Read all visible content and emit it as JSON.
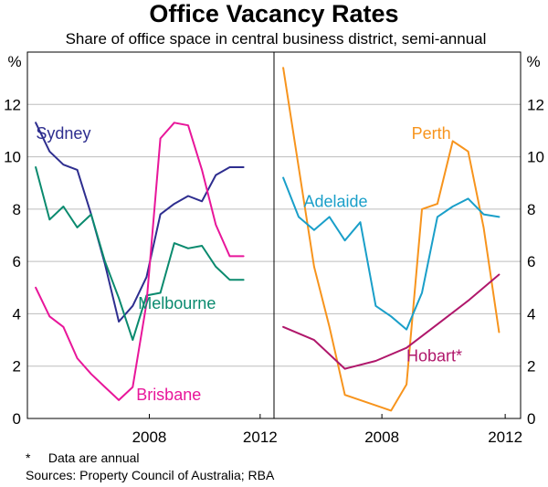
{
  "chart_data": {
    "type": "line",
    "title": "Office Vacancy Rates",
    "subtitle": "Share of office space in central business district, semi-annual",
    "unit_left": "%",
    "unit_right": "%",
    "ylim": [
      0,
      14
    ],
    "yticks": [
      0,
      2,
      4,
      6,
      8,
      10,
      12
    ],
    "grid": true,
    "colors": {
      "Sydney": "#2e2e8f",
      "Melbourne": "#0a8a6e",
      "Brisbane": "#e8169a",
      "Perth": "#f7941d",
      "Adelaide": "#1a9fc9",
      "Hobart*": "#b0176b"
    },
    "panels": [
      {
        "xlim": [
          2003.6,
          2012.5
        ],
        "xticks": [
          2008,
          2012
        ],
        "series": [
          {
            "name": "Sydney",
            "label_x": 2004.9,
            "label_y": 10.9,
            "x": [
              2003.9,
              2004.4,
              2004.9,
              2005.4,
              2005.9,
              2006.4,
              2006.9,
              2007.4,
              2007.9,
              2008.4,
              2008.9,
              2009.4,
              2009.9,
              2010.4,
              2010.9,
              2011.4
            ],
            "y": [
              11.3,
              10.2,
              9.7,
              9.5,
              7.8,
              5.9,
              3.7,
              4.3,
              5.4,
              7.8,
              8.2,
              8.5,
              8.3,
              9.3,
              9.6,
              9.6
            ]
          },
          {
            "name": "Melbourne",
            "label_x": 2009.0,
            "label_y": 4.4,
            "x": [
              2003.9,
              2004.4,
              2004.9,
              2005.4,
              2005.9,
              2006.4,
              2006.9,
              2007.4,
              2007.9,
              2008.4,
              2008.9,
              2009.4,
              2009.9,
              2010.4,
              2010.9,
              2011.4
            ],
            "y": [
              9.6,
              7.6,
              8.1,
              7.3,
              7.8,
              6.0,
              4.6,
              3.0,
              4.7,
              4.8,
              6.7,
              6.5,
              6.6,
              5.8,
              5.3,
              5.3
            ]
          },
          {
            "name": "Brisbane",
            "label_x": 2008.7,
            "label_y": 0.9,
            "x": [
              2003.9,
              2004.4,
              2004.9,
              2005.4,
              2005.9,
              2006.4,
              2006.9,
              2007.4,
              2007.9,
              2008.4,
              2008.9,
              2009.4,
              2009.9,
              2010.4,
              2010.9,
              2011.4
            ],
            "y": [
              5.0,
              3.9,
              3.5,
              2.3,
              1.7,
              1.2,
              0.7,
              1.2,
              4.4,
              10.7,
              11.3,
              11.2,
              9.5,
              7.4,
              6.2,
              6.2
            ]
          }
        ]
      },
      {
        "xlim": [
          2004.5,
          2012.5
        ],
        "xticks": [
          2008,
          2012
        ],
        "series": [
          {
            "name": "Perth",
            "label_x": 2009.6,
            "label_y": 10.9,
            "x": [
              2004.8,
              2005.3,
              2005.8,
              2006.3,
              2006.8,
              2007.3,
              2007.8,
              2008.3,
              2008.8,
              2009.3,
              2009.8,
              2010.3,
              2010.8,
              2011.3,
              2011.8
            ],
            "y": [
              13.4,
              9.6,
              5.8,
              3.5,
              0.9,
              0.7,
              0.5,
              0.3,
              1.3,
              8.0,
              8.2,
              10.6,
              10.2,
              7.3,
              3.3
            ]
          },
          {
            "name": "Adelaide",
            "label_x": 2006.5,
            "label_y": 8.3,
            "x": [
              2004.8,
              2005.3,
              2005.8,
              2006.3,
              2006.8,
              2007.3,
              2007.8,
              2008.3,
              2008.8,
              2009.3,
              2009.8,
              2010.3,
              2010.8,
              2011.3,
              2011.8
            ],
            "y": [
              9.2,
              7.7,
              7.2,
              7.7,
              6.8,
              7.5,
              4.3,
              3.9,
              3.4,
              4.8,
              7.7,
              8.1,
              8.4,
              7.8,
              7.7
            ]
          },
          {
            "name": "Hobart*",
            "label_x": 2009.7,
            "label_y": 2.4,
            "x": [
              2004.8,
              2005.8,
              2006.8,
              2007.8,
              2008.8,
              2009.8,
              2010.8,
              2011.8
            ],
            "y": [
              3.5,
              3.0,
              1.9,
              2.2,
              2.7,
              3.6,
              4.5,
              5.5
            ]
          }
        ]
      }
    ]
  },
  "footnote": "*     Data are annual",
  "sources": "Sources: Property Council of Australia; RBA"
}
